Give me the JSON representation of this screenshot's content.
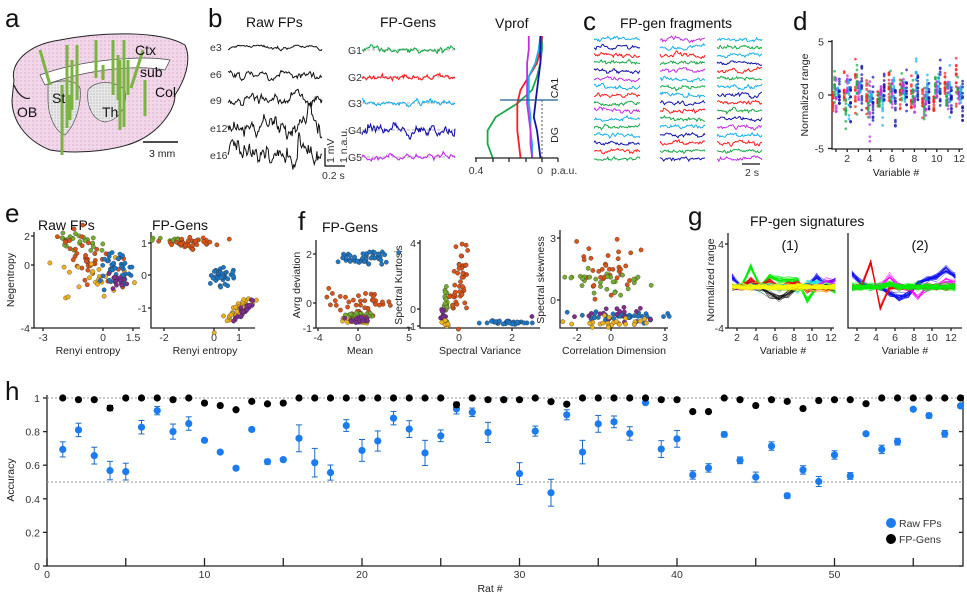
{
  "panel_labels": {
    "a": "a",
    "b": "b",
    "c": "c",
    "d": "d",
    "e": "e",
    "f": "f",
    "g": "g",
    "h": "h"
  },
  "panel_a": {
    "regions": {
      "ctx": "Ctx",
      "sub": "sub",
      "col": "Col",
      "ob": "OB",
      "st": "St",
      "th": "Th"
    },
    "scale_bar": "3 mm",
    "electrode_color": "#7cb342",
    "tissue_color": "#f2d6ea"
  },
  "panel_b": {
    "raw_title": "Raw FPs",
    "raw_channels": [
      "e3",
      "e6",
      "e9",
      "e12",
      "e16"
    ],
    "scale_mv": "1 mV",
    "scale_nau": "1 n.a.u.",
    "scale_time": "0.2 s",
    "gen_title": "FP-Gens",
    "generators": [
      {
        "name": "G1",
        "color": "#1aa84a"
      },
      {
        "name": "G2",
        "color": "#ff1e1e"
      },
      {
        "name": "G3",
        "color": "#1ab0ea"
      },
      {
        "name": "G4",
        "color": "#1414aa"
      },
      {
        "name": "G5",
        "color": "#c22fe6"
      }
    ],
    "vprof_title": "Vprof",
    "vprof_ticks": [
      "0.4",
      "0"
    ],
    "vprof_unit": "p.a.u.",
    "layers": [
      "CA1",
      "DG"
    ]
  },
  "panel_c": {
    "title": "FP-gen fragments",
    "scale_time": "2 s"
  },
  "panel_d": {
    "ylabel": "Normalized range",
    "xlabel": "Variable #",
    "yticks": [
      "5",
      "0",
      "-5"
    ],
    "xticks": [
      "2",
      "4",
      "6",
      "8",
      "10",
      "12"
    ]
  },
  "panel_e": {
    "plot1_title": "Raw FPs",
    "plot2_title": "FP-Gens",
    "ylabel": "Negentropy",
    "xlabel1": "Renyi entropy",
    "xlabel2": "Renyi entropy",
    "plot1_yticks": [
      "2",
      "0",
      "-4"
    ],
    "plot1_xticks": [
      "-3",
      "0",
      "1.5"
    ],
    "plot2_yticks": [
      "1",
      "0",
      "-1"
    ],
    "plot2_xticks": [
      "-2",
      "0",
      "1"
    ]
  },
  "panel_f": {
    "title": "FP-Gens",
    "plot1": {
      "ylabel": "Avrg deviation",
      "xlabel": "Mean",
      "yticks": [
        "2",
        "0",
        "-1"
      ],
      "xticks": [
        "-4",
        "0",
        "5"
      ]
    },
    "plot2": {
      "ylabel": "Spectral Kurtosis",
      "xlabel": "Spectral Variance",
      "yticks": [
        "4",
        "0",
        "-1"
      ],
      "xticks": [
        "0",
        "2"
      ]
    },
    "plot3": {
      "ylabel": "Spectral skewness",
      "xlabel": "Correlation Dimension",
      "yticks": [
        "3",
        "0"
      ],
      "xticks": [
        "-2",
        "0",
        "3"
      ]
    }
  },
  "panel_g": {
    "title": "FP-gen signatures",
    "sub1": "(1)",
    "sub2": "(2)",
    "ylabel": "Normalized range",
    "xlabel": "Variable #",
    "yticks": [
      "4",
      "-4"
    ],
    "xticks": [
      "2",
      "4",
      "6",
      "8",
      "10",
      "12"
    ]
  },
  "cluster_colors": [
    "#1f77c4",
    "#d9541a",
    "#77ac30",
    "#edb120",
    "#7e2f8e"
  ],
  "chart_data": [
    {
      "panel": "h",
      "type": "scatter",
      "xlabel": "Rat #",
      "ylabel": "Accuracy",
      "xlim": [
        0,
        58.5
      ],
      "ylim": [
        0,
        1
      ],
      "xticks": [
        "0",
        "10",
        "20",
        "30",
        "40",
        "50"
      ],
      "yticks": [
        "0",
        "0.2",
        "0.4",
        "0.6",
        "0.8",
        "1"
      ],
      "reference_lines": [
        1,
        0.5
      ],
      "legend_position": "bottom-right",
      "series": [
        {
          "name": "Raw FPs",
          "color": "#1a7cf0",
          "x": [
            1,
            2,
            3,
            4,
            5,
            6,
            7,
            8,
            9,
            10,
            11,
            12,
            13,
            14,
            15,
            16,
            17,
            18,
            19,
            20,
            21,
            22,
            23,
            24,
            25,
            26,
            27,
            28,
            29,
            30,
            31,
            32,
            33,
            34,
            35,
            36,
            37,
            38,
            39,
            40,
            41,
            42,
            43,
            44,
            45,
            46,
            47,
            48,
            49,
            50,
            51,
            52,
            53,
            54,
            55,
            56,
            57,
            58
          ],
          "y": [
            0.694,
            0.81,
            0.657,
            0.568,
            0.562,
            0.826,
            0.925,
            0.8,
            0.848,
            0.748,
            0.678,
            0.582,
            0.813,
            0.621,
            0.633,
            0.76,
            0.615,
            0.556,
            0.836,
            0.688,
            0.744,
            0.88,
            0.815,
            0.673,
            0.775,
            0.935,
            0.915,
            0.795,
            0.99,
            0.55,
            0.803,
            0.436,
            0.9,
            0.678,
            0.846,
            0.858,
            0.789,
            0.972,
            0.696,
            0.757,
            0.542,
            0.584,
            0.783,
            0.629,
            0.529,
            0.714,
            0.418,
            0.572,
            0.503,
            0.661,
            0.536,
            0.787,
            0.694,
            0.74,
            0.933,
            0.895,
            0.787,
            0.953
          ],
          "err": [
            0.045,
            0.04,
            0.05,
            0.055,
            0.05,
            0.04,
            0.025,
            0.045,
            0.04,
            0.01,
            0.01,
            0.01,
            0.01,
            0.015,
            0.01,
            0.08,
            0.085,
            0.045,
            0.035,
            0.065,
            0.06,
            0.04,
            0.05,
            0.075,
            0.035,
            0.03,
            0.025,
            0.06,
            0.005,
            0.065,
            0.03,
            0.08,
            0.03,
            0.07,
            0.05,
            0.035,
            0.04,
            0.005,
            0.05,
            0.05,
            0.025,
            0.025,
            0.015,
            0.02,
            0.03,
            0.025,
            0.015,
            0.025,
            0.03,
            0.025,
            0.02,
            0.01,
            0.025,
            0.02,
            0.01,
            0.015,
            0.02,
            0.01
          ]
        },
        {
          "name": "FP-Gens",
          "color": "#000000",
          "x": [
            1,
            2,
            3,
            4,
            5,
            6,
            7,
            8,
            9,
            10,
            11,
            12,
            13,
            14,
            15,
            16,
            17,
            18,
            19,
            20,
            21,
            22,
            23,
            24,
            25,
            26,
            27,
            28,
            29,
            30,
            31,
            32,
            33,
            34,
            35,
            36,
            37,
            38,
            39,
            40,
            41,
            42,
            43,
            44,
            45,
            46,
            47,
            48,
            49,
            50,
            51,
            52,
            53,
            54,
            55,
            56,
            57,
            58
          ],
          "y": [
            1.0,
            0.99,
            0.99,
            0.94,
            1.0,
            1.0,
            1.0,
            0.99,
            1.0,
            0.97,
            0.955,
            0.93,
            0.98,
            0.965,
            0.97,
            1.0,
            1.0,
            1.0,
            1.0,
            1.0,
            1.0,
            1.0,
            1.0,
            1.0,
            1.0,
            0.96,
            1.0,
            0.99,
            0.99,
            0.99,
            1.0,
            0.978,
            0.963,
            1.0,
            1.0,
            1.0,
            1.0,
            1.0,
            0.99,
            0.99,
            0.919,
            0.919,
            1.0,
            0.99,
            0.955,
            0.99,
            0.98,
            0.937,
            0.985,
            0.99,
            0.99,
            0.966,
            1.0,
            1.0,
            1.0,
            1.0,
            1.0,
            1.0
          ],
          "err": [
            0,
            0,
            0,
            0.015,
            0,
            0,
            0,
            0,
            0,
            0,
            0,
            0,
            0,
            0,
            0,
            0,
            0,
            0,
            0,
            0,
            0,
            0,
            0,
            0,
            0,
            0.015,
            0,
            0,
            0,
            0,
            0,
            0.01,
            0.01,
            0,
            0,
            0,
            0,
            0,
            0,
            0,
            0,
            0,
            0,
            0,
            0,
            0,
            0,
            0,
            0,
            0,
            0,
            0,
            0,
            0,
            0,
            0,
            0,
            0
          ]
        }
      ]
    },
    {
      "panel": "b-vprof",
      "type": "line",
      "xlim": [
        0.4,
        0
      ],
      "depth_samples": 10,
      "series": [
        {
          "color": "#1aa84a",
          "values": [
            0.0,
            0.0,
            0.01,
            0.03,
            0.06,
            0.15,
            0.28,
            0.33,
            0.33,
            0.3
          ]
        },
        {
          "color": "#ff1e1e",
          "values": [
            0.0,
            0.01,
            0.03,
            0.08,
            0.13,
            0.15,
            0.15,
            0.15,
            0.14,
            0.13
          ]
        },
        {
          "color": "#1ab0ea",
          "values": [
            0.01,
            0.02,
            0.04,
            0.08,
            0.08,
            0.08,
            0.07,
            0.07,
            0.06,
            0.06
          ]
        },
        {
          "color": "#c22fe6",
          "values": [
            0.08,
            0.08,
            0.09,
            0.09,
            0.09,
            0.09,
            0.08,
            0.07,
            0.07,
            0.06
          ]
        },
        {
          "color": "#1414aa",
          "values": [
            0.01,
            0.01,
            0.01,
            0.02,
            0.03,
            0.04,
            0.05,
            0.03,
            0.02,
            0.01
          ]
        }
      ]
    }
  ],
  "legend": {
    "raw": "Raw FPs",
    "gens": "FP-Gens"
  }
}
